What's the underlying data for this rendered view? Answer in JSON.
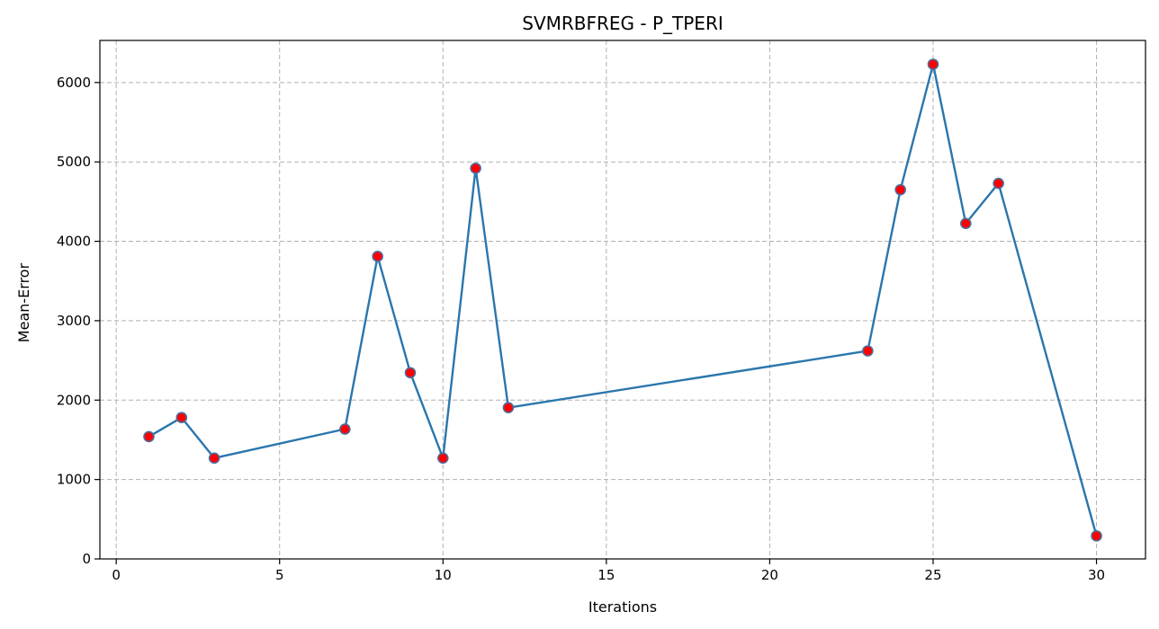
{
  "chart_data": {
    "type": "line",
    "title": "SVMRBFREG - P_TPERI",
    "xlabel": "Iterations",
    "ylabel": "Mean-Error",
    "xlim": [
      -0.5,
      31.5
    ],
    "ylim": [
      0,
      6530
    ],
    "xticks": [
      0,
      5,
      10,
      15,
      20,
      25,
      30
    ],
    "yticks": [
      0,
      1000,
      2000,
      3000,
      4000,
      5000,
      6000
    ],
    "grid": true,
    "series": [
      {
        "x": [
          1,
          2,
          3,
          7,
          8,
          9,
          10,
          11,
          12,
          23,
          24,
          25,
          26,
          27,
          30
        ],
        "y": [
          1540,
          1780,
          1270,
          1635,
          3810,
          2345,
          1270,
          4920,
          1905,
          2620,
          4650,
          6230,
          4225,
          4730,
          290
        ],
        "line_color": "#2a76ad",
        "marker_face": "#ff0000",
        "marker_edge": "#4d6e9c"
      }
    ]
  }
}
